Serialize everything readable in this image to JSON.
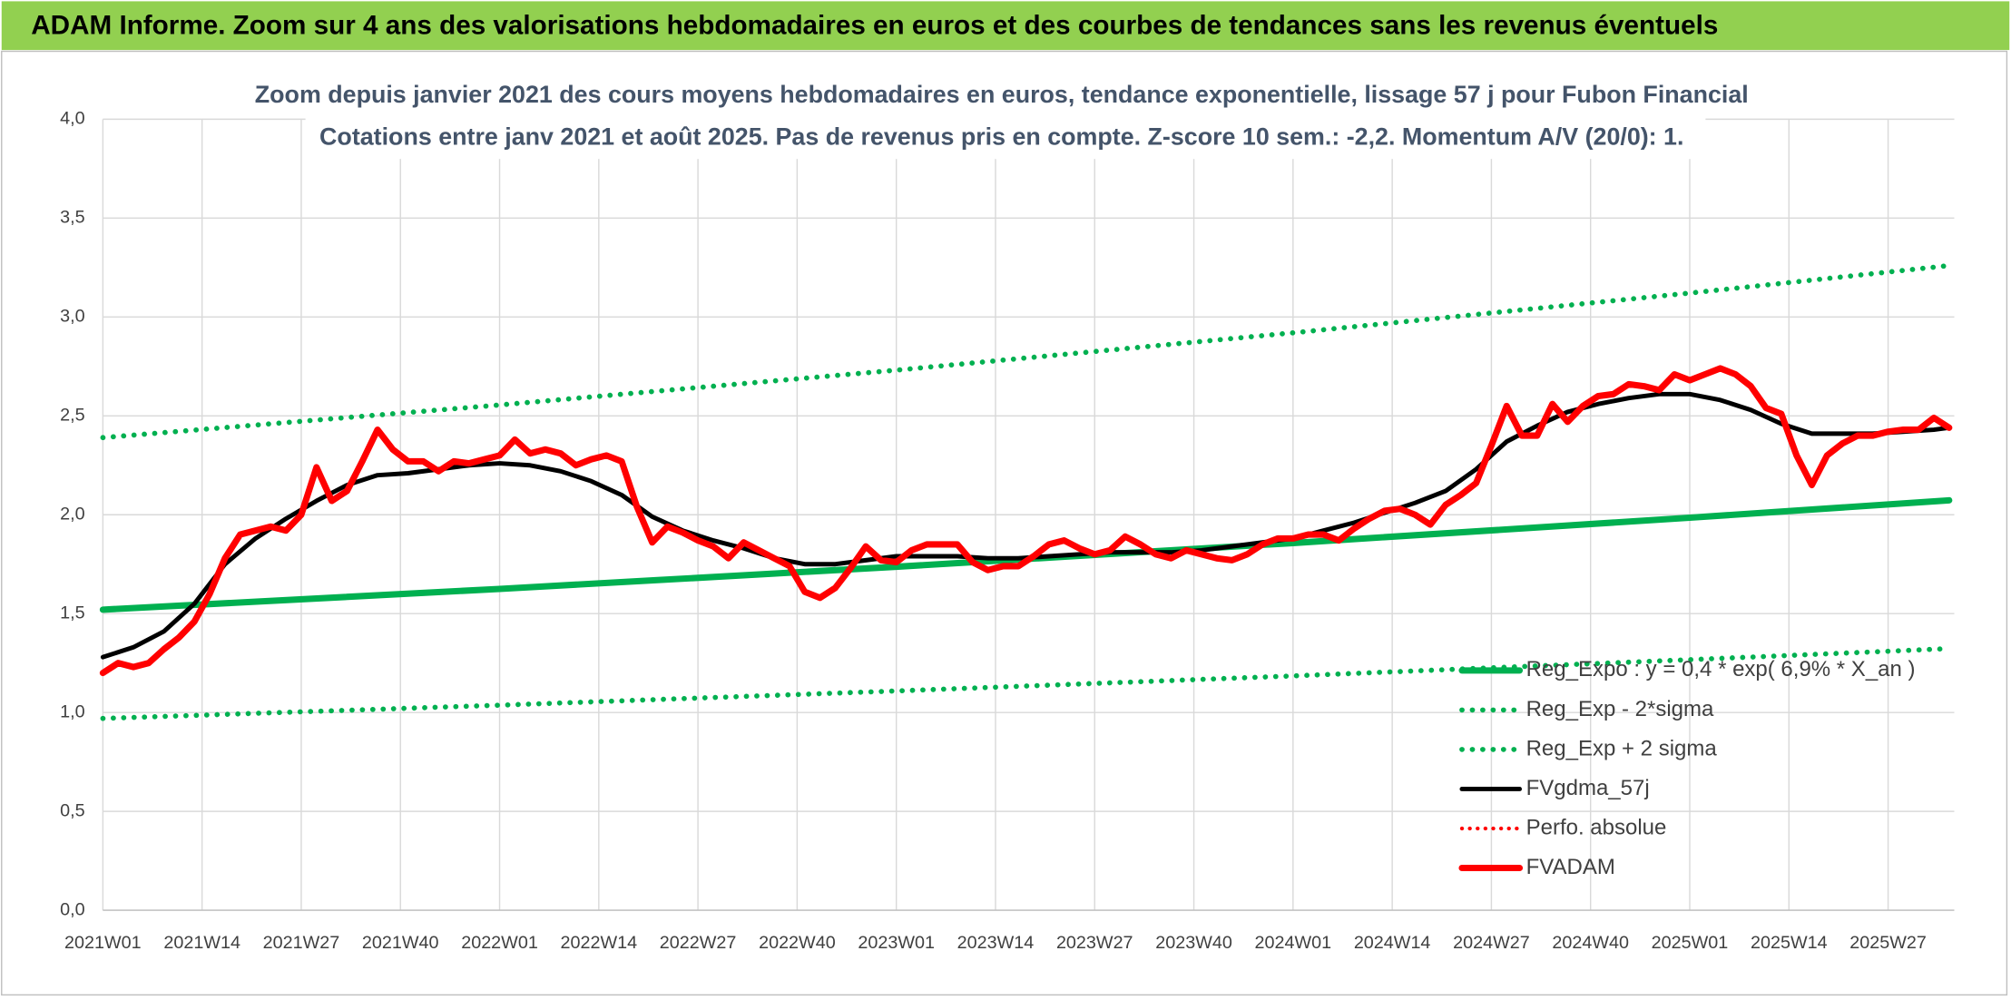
{
  "chart_data": {
    "type": "line",
    "title": "ADAM Informe. Zoom sur 4 ans des valorisations hebdomadaires en euros et des courbes de tendances sans les revenus éventuels",
    "subtitle": [
      "Zoom depuis janvier 2021 des cours moyens hebdomadaires en euros, tendance exponentielle, lissage 57 j pour Fubon Financial",
      "Cotations entre janv 2021 et août 2025. Pas de revenus pris en compte. Z-score 10 sem.: -2,2. Momentum A/V (20/0): 1."
    ],
    "xlim": [
      0,
      242
    ],
    "xticks": [
      {
        "value": 0,
        "label": "2021W01"
      },
      {
        "value": 13,
        "label": "2021W14"
      },
      {
        "value": 26,
        "label": "2021W27"
      },
      {
        "value": 39,
        "label": "2021W40"
      },
      {
        "value": 52,
        "label": "2022W01"
      },
      {
        "value": 65,
        "label": "2022W14"
      },
      {
        "value": 78,
        "label": "2022W27"
      },
      {
        "value": 91,
        "label": "2022W40"
      },
      {
        "value": 104,
        "label": "2023W01"
      },
      {
        "value": 117,
        "label": "2023W14"
      },
      {
        "value": 130,
        "label": "2023W27"
      },
      {
        "value": 143,
        "label": "2023W40"
      },
      {
        "value": 156,
        "label": "2024W01"
      },
      {
        "value": 169,
        "label": "2024W14"
      },
      {
        "value": 182,
        "label": "2024W27"
      },
      {
        "value": 195,
        "label": "2024W40"
      },
      {
        "value": 208,
        "label": "2025W01"
      },
      {
        "value": 221,
        "label": "2025W14"
      },
      {
        "value": 234,
        "label": "2025W27"
      }
    ],
    "ylim": [
      0,
      4
    ],
    "yticks": [
      {
        "value": 0,
        "label": "0,0"
      },
      {
        "value": 0.5,
        "label": "0,5"
      },
      {
        "value": 1,
        "label": "1,0"
      },
      {
        "value": 1.5,
        "label": "1,5"
      },
      {
        "value": 2,
        "label": "2,0"
      },
      {
        "value": 2.5,
        "label": "2,5"
      },
      {
        "value": 3,
        "label": "3,0"
      },
      {
        "value": 3.5,
        "label": "3,5"
      },
      {
        "value": 4,
        "label": "4,0"
      }
    ],
    "grid": true,
    "legend": "lower right",
    "series": [
      {
        "name": "Reg_Expo : y = 0,4 * exp( 6,9% *  X_an )",
        "color": "#00b050",
        "style": "solid",
        "width": 5,
        "x": [
          0,
          52,
          104,
          156,
          208,
          242
        ],
        "values": [
          1.52,
          1.625,
          1.737,
          1.857,
          1.985,
          2.073
        ]
      },
      {
        "name": "Reg_Exp - 2*sigma",
        "color": "#00b050",
        "style": "dotted",
        "width": 4,
        "x": [
          0,
          52,
          104,
          156,
          208,
          242
        ],
        "values": [
          0.97,
          1.037,
          1.109,
          1.185,
          1.267,
          1.323
        ]
      },
      {
        "name": "Reg_Exp + 2 sigma",
        "color": "#00b050",
        "style": "dotted",
        "width": 4,
        "x": [
          0,
          52,
          104,
          156,
          208,
          242
        ],
        "values": [
          2.39,
          2.555,
          2.731,
          2.92,
          3.121,
          3.26
        ]
      },
      {
        "name": "FVgdma_57j",
        "color": "#000000",
        "style": "solid",
        "width": 3.5,
        "x": [
          0,
          4,
          8,
          12,
          16,
          20,
          24,
          28,
          32,
          36,
          40,
          44,
          48,
          52,
          56,
          60,
          64,
          68,
          72,
          76,
          80,
          84,
          88,
          92,
          96,
          100,
          104,
          108,
          112,
          116,
          120,
          124,
          128,
          132,
          136,
          140,
          144,
          148,
          152,
          156,
          160,
          164,
          168,
          172,
          176,
          180,
          184,
          188,
          192,
          196,
          200,
          204,
          208,
          212,
          216,
          220,
          224,
          228,
          232,
          236,
          240,
          242
        ],
        "values": [
          1.28,
          1.33,
          1.41,
          1.55,
          1.75,
          1.88,
          1.98,
          2.07,
          2.15,
          2.2,
          2.21,
          2.23,
          2.25,
          2.26,
          2.25,
          2.22,
          2.17,
          2.1,
          1.99,
          1.92,
          1.87,
          1.83,
          1.78,
          1.75,
          1.75,
          1.77,
          1.79,
          1.79,
          1.79,
          1.78,
          1.78,
          1.79,
          1.8,
          1.81,
          1.81,
          1.81,
          1.82,
          1.84,
          1.86,
          1.88,
          1.92,
          1.96,
          2.01,
          2.06,
          2.12,
          2.23,
          2.37,
          2.45,
          2.52,
          2.56,
          2.59,
          2.61,
          2.61,
          2.58,
          2.53,
          2.46,
          2.41,
          2.41,
          2.41,
          2.42,
          2.43,
          2.44
        ]
      },
      {
        "name": "Perfo. absolue",
        "color": "#ff0000",
        "style": "dotted",
        "width": 3,
        "x": [],
        "values": []
      },
      {
        "name": "FVADAM",
        "color": "#ff0000",
        "style": "solid",
        "width": 5,
        "x": [
          0,
          2,
          4,
          6,
          8,
          10,
          12,
          14,
          16,
          18,
          20,
          22,
          24,
          26,
          28,
          30,
          32,
          34,
          36,
          38,
          40,
          42,
          44,
          46,
          48,
          50,
          52,
          54,
          56,
          58,
          60,
          62,
          64,
          66,
          68,
          70,
          72,
          74,
          76,
          78,
          80,
          82,
          84,
          86,
          88,
          90,
          92,
          94,
          96,
          98,
          100,
          102,
          104,
          106,
          108,
          110,
          112,
          114,
          116,
          118,
          120,
          122,
          124,
          126,
          128,
          130,
          132,
          134,
          136,
          138,
          140,
          142,
          144,
          146,
          148,
          150,
          152,
          154,
          156,
          158,
          160,
          162,
          164,
          166,
          168,
          170,
          172,
          174,
          176,
          178,
          180,
          182,
          184,
          186,
          188,
          190,
          192,
          194,
          196,
          198,
          200,
          202,
          204,
          206,
          208,
          210,
          212,
          214,
          216,
          218,
          220,
          222,
          224,
          226,
          228,
          230,
          232,
          234,
          236,
          238,
          240,
          242
        ],
        "values": [
          1.2,
          1.25,
          1.23,
          1.25,
          1.32,
          1.38,
          1.46,
          1.6,
          1.78,
          1.9,
          1.92,
          1.94,
          1.92,
          2.0,
          2.24,
          2.07,
          2.12,
          2.27,
          2.43,
          2.33,
          2.27,
          2.27,
          2.22,
          2.27,
          2.26,
          2.28,
          2.3,
          2.38,
          2.31,
          2.33,
          2.31,
          2.25,
          2.28,
          2.3,
          2.27,
          2.04,
          1.86,
          1.94,
          1.91,
          1.87,
          1.84,
          1.78,
          1.86,
          1.82,
          1.78,
          1.74,
          1.61,
          1.58,
          1.63,
          1.73,
          1.84,
          1.77,
          1.76,
          1.82,
          1.85,
          1.85,
          1.85,
          1.76,
          1.72,
          1.74,
          1.74,
          1.79,
          1.85,
          1.87,
          1.83,
          1.8,
          1.82,
          1.89,
          1.85,
          1.8,
          1.78,
          1.82,
          1.8,
          1.78,
          1.77,
          1.8,
          1.85,
          1.88,
          1.88,
          1.9,
          1.9,
          1.87,
          1.93,
          1.98,
          2.02,
          2.03,
          2.0,
          1.95,
          2.05,
          2.1,
          2.16,
          2.35,
          2.55,
          2.4,
          2.4,
          2.56,
          2.47,
          2.55,
          2.6,
          2.61,
          2.66,
          2.65,
          2.63,
          2.71,
          2.68,
          2.71,
          2.74,
          2.71,
          2.65,
          2.54,
          2.51,
          2.3,
          2.15,
          2.3,
          2.36,
          2.4,
          2.4,
          2.42,
          2.43,
          2.43,
          2.49,
          2.44
        ]
      }
    ]
  }
}
